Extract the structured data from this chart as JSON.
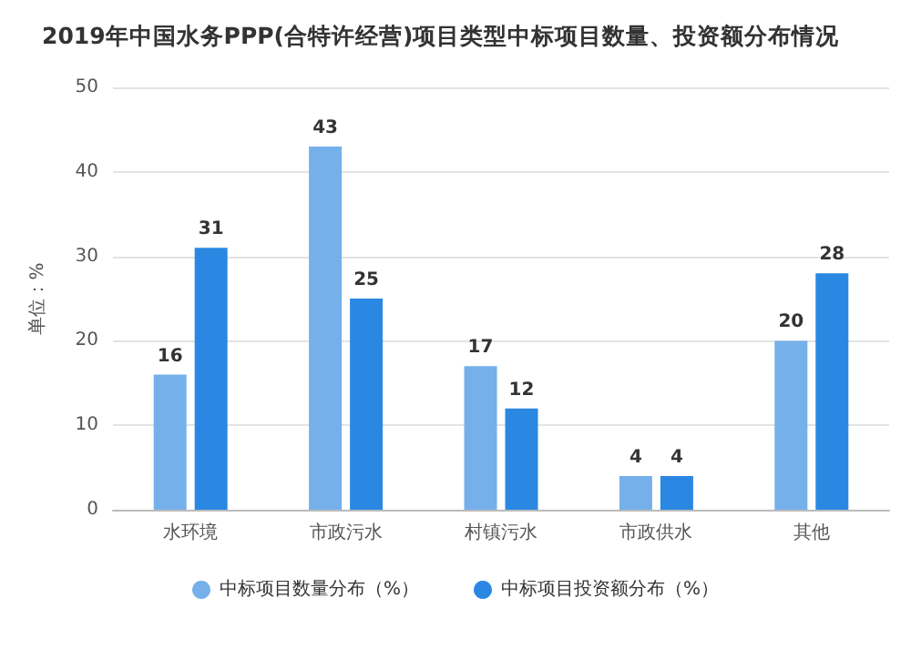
{
  "chart_data": {
    "type": "bar",
    "title": "2019年中国水务PPP(合特许经营)项目类型中标项目数量、投资额分布情况",
    "ylabel": "单位：%",
    "categories": [
      "水环境",
      "市政污水",
      "村镇污水",
      "市政供水",
      "其他"
    ],
    "series": [
      {
        "name": "中标项目数量分布（%）",
        "color": "#75b0ea",
        "values": [
          16,
          43,
          17,
          4,
          20
        ]
      },
      {
        "name": "中标项目投资额分布（%）",
        "color": "#2b88e2",
        "values": [
          31,
          25,
          12,
          4,
          28
        ]
      }
    ],
    "ylim": [
      0,
      50
    ],
    "yticks": [
      0,
      10,
      20,
      30,
      40,
      50
    ],
    "grid": "y",
    "legend": "bottom",
    "data_labels": true
  }
}
